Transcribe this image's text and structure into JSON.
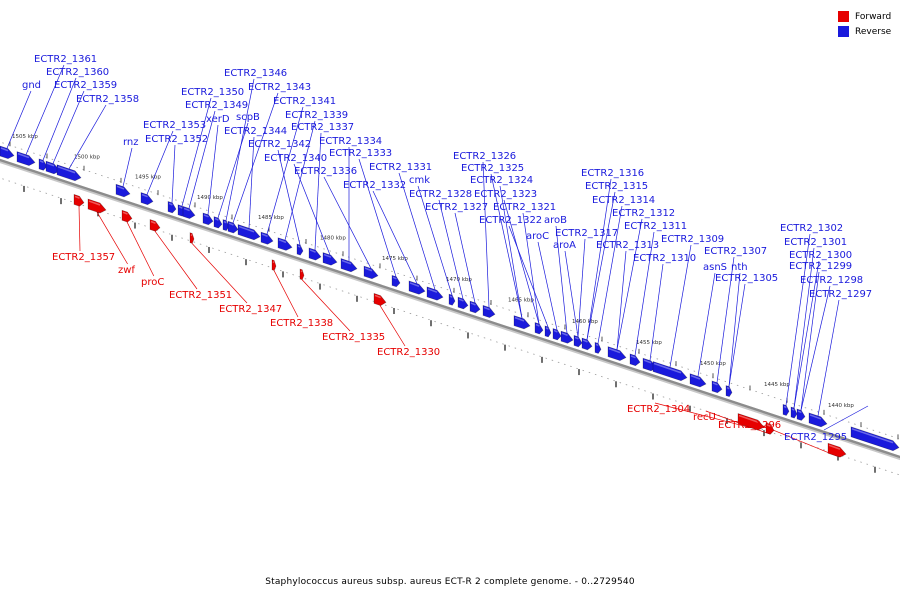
{
  "colors": {
    "forward": "#e60000",
    "reverse": "#1a1adc",
    "backbone": "#8c8c8c"
  },
  "legend": [
    {
      "label": "Forward",
      "color": "#e60000"
    },
    {
      "label": "Reverse",
      "color": "#1a1adc"
    }
  ],
  "caption": "Staphylococcus aureus subsp. aureus ECT-R 2 complete genome. - 0..2729540",
  "axis": {
    "unit": "kbp",
    "tick_labels": [
      "1505 kbp",
      "1500 kbp",
      "1495 kbp",
      "1490 kbp",
      "1485 kbp",
      "1480 kbp",
      "1475 kbp",
      "1470 kbp",
      "1465 kbp",
      "1460 kbp",
      "1455 kbp",
      "1450 kbp",
      "1445 kbp",
      "1440 kbp"
    ]
  },
  "reverse_genes": [
    "gnd",
    "ECTR2_1361",
    "ECTR2_1360",
    "ECTR2_1359",
    "ECTR2_1358",
    "rnz",
    "ECTR2_1353",
    "ECTR2_1352",
    "ECTR2_1350",
    "ECTR2_1349",
    "xerD",
    "scpB",
    "ECTR2_1346",
    "ECTR2_1343",
    "ECTR2_1344",
    "ECTR2_1341",
    "ECTR2_1339",
    "ECTR2_1342",
    "ECTR2_1337",
    "ECTR2_1340",
    "ECTR2_1334",
    "ECTR2_1336",
    "ECTR2_1333",
    "ECTR2_1332",
    "ECTR2_1331",
    "cmk",
    "ECTR2_1328",
    "ECTR2_1327",
    "ECTR2_1326",
    "ECTR2_1325",
    "ECTR2_1324",
    "ECTR2_1323",
    "ECTR2_1321",
    "ECTR2_1322",
    "aroC",
    "aroB",
    "aroA",
    "ECTR2_1317",
    "ECTR2_1316",
    "ECTR2_1315",
    "ECTR2_1314",
    "ECTR2_1313",
    "ECTR2_1312",
    "ECTR2_1311",
    "ECTR2_1310",
    "ECTR2_1309",
    "asnS",
    "ECTR2_1307",
    "nth",
    "ECTR2_1305",
    "ECTR2_1302",
    "ECTR2_1301",
    "ECTR2_1300",
    "ECTR2_1299",
    "ECTR2_1298",
    "ECTR2_1297",
    "ECTR2_1295"
  ],
  "forward_genes": [
    "ECTR2_1357",
    "zwf",
    "proC",
    "ECTR2_1351",
    "ECTR2_1347",
    "ECTR2_1338",
    "ECTR2_1335",
    "ECTR2_1330",
    "ECTR2_1304",
    "recU",
    "ECTR2_1296"
  ]
}
